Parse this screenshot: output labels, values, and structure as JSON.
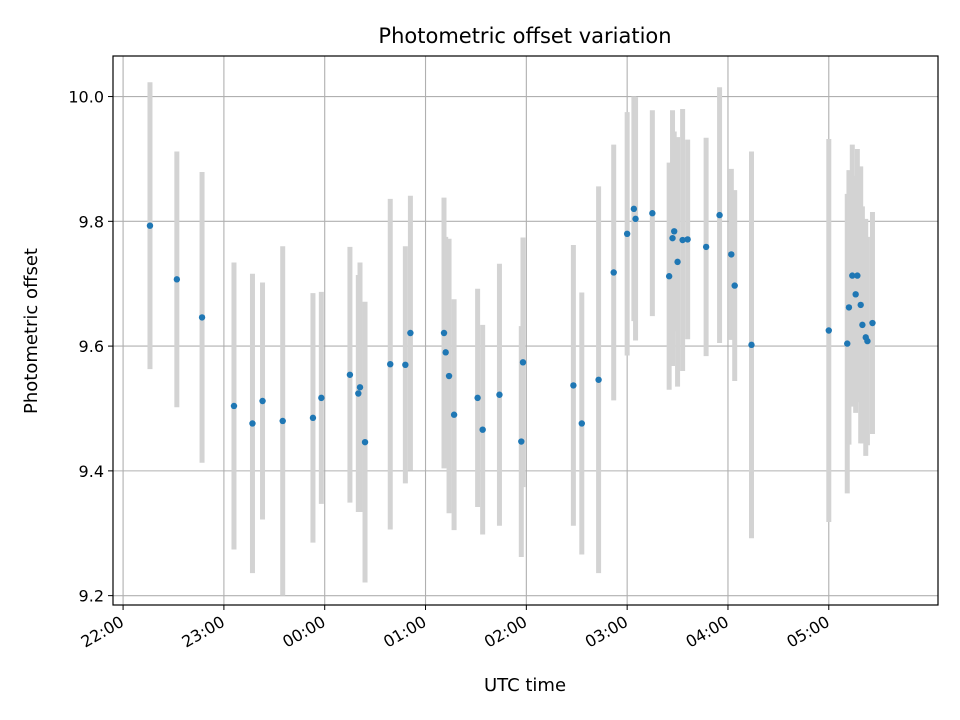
{
  "chart_data": {
    "type": "scatter",
    "title": "Photometric offset variation",
    "xlabel": "UTC time",
    "ylabel": "Photometric offset",
    "x_axis_type": "time",
    "x_reference_date_shown": false,
    "xlim": [
      "21:54",
      "06:05"
    ],
    "ylim": [
      9.185,
      10.065
    ],
    "xticks": [
      "22:00",
      "23:00",
      "00:00",
      "01:00",
      "02:00",
      "03:00",
      "04:00",
      "05:00"
    ],
    "yticks": [
      "9.2",
      "9.4",
      "9.6",
      "9.8",
      "10.0"
    ],
    "ytick_values": [
      9.2,
      9.4,
      9.6,
      9.8,
      10.0
    ],
    "grid": true,
    "legend": "none",
    "marker_color": "#1f77b4",
    "errorbar_color": "#d3d3d3",
    "series": [
      {
        "x": [
          "22:16",
          "22:32",
          "22:47",
          "23:06",
          "23:17",
          "23:23",
          "23:35",
          "23:53",
          "23:58",
          "00:15",
          "00:20",
          "00:21",
          "00:24",
          "00:39",
          "00:48",
          "00:51",
          "01:11",
          "01:12",
          "01:14",
          "01:17",
          "01:31",
          "01:34",
          "01:44",
          "01:57",
          "01:58",
          "02:28",
          "02:33",
          "02:43",
          "02:52",
          "03:00",
          "03:04",
          "03:05",
          "03:15",
          "03:25",
          "03:27",
          "03:28",
          "03:30",
          "03:33",
          "03:36",
          "03:47",
          "03:55",
          "04:02",
          "04:04",
          "04:14",
          "05:00",
          "05:11",
          "05:12",
          "05:14",
          "05:16",
          "05:17",
          "05:19",
          "05:20",
          "05:22",
          "05:23",
          "05:26"
        ],
        "y": [
          9.793,
          9.707,
          9.646,
          9.504,
          9.476,
          9.512,
          9.48,
          9.485,
          9.517,
          9.554,
          9.524,
          9.534,
          9.446,
          9.571,
          9.57,
          9.621,
          9.621,
          9.59,
          9.552,
          9.49,
          9.517,
          9.466,
          9.522,
          9.447,
          9.574,
          9.537,
          9.476,
          9.546,
          9.718,
          9.78,
          9.82,
          9.804,
          9.813,
          9.712,
          9.773,
          9.784,
          9.735,
          9.77,
          9.771,
          9.759,
          9.81,
          9.747,
          9.697,
          9.602,
          9.625,
          9.604,
          9.662,
          9.713,
          9.683,
          9.713,
          9.666,
          9.634,
          9.614,
          9.608,
          9.637
        ],
        "yerr": [
          0.23,
          0.205,
          0.233,
          0.23,
          0.24,
          0.19,
          0.28,
          0.2,
          0.17,
          0.205,
          0.19,
          0.2,
          0.225,
          0.265,
          0.19,
          0.22,
          0.217,
          0.185,
          0.22,
          0.185,
          0.175,
          0.168,
          0.21,
          0.185,
          0.2,
          0.225,
          0.21,
          0.31,
          0.205,
          0.195,
          0.18,
          0.195,
          0.165,
          0.182,
          0.205,
          0.16,
          0.2,
          0.21,
          0.16,
          0.175,
          0.205,
          0.137,
          0.153,
          0.31,
          0.307,
          0.24,
          0.22,
          0.21,
          0.19,
          0.203,
          0.222,
          0.19,
          0.19,
          0.167,
          0.178
        ]
      }
    ]
  }
}
